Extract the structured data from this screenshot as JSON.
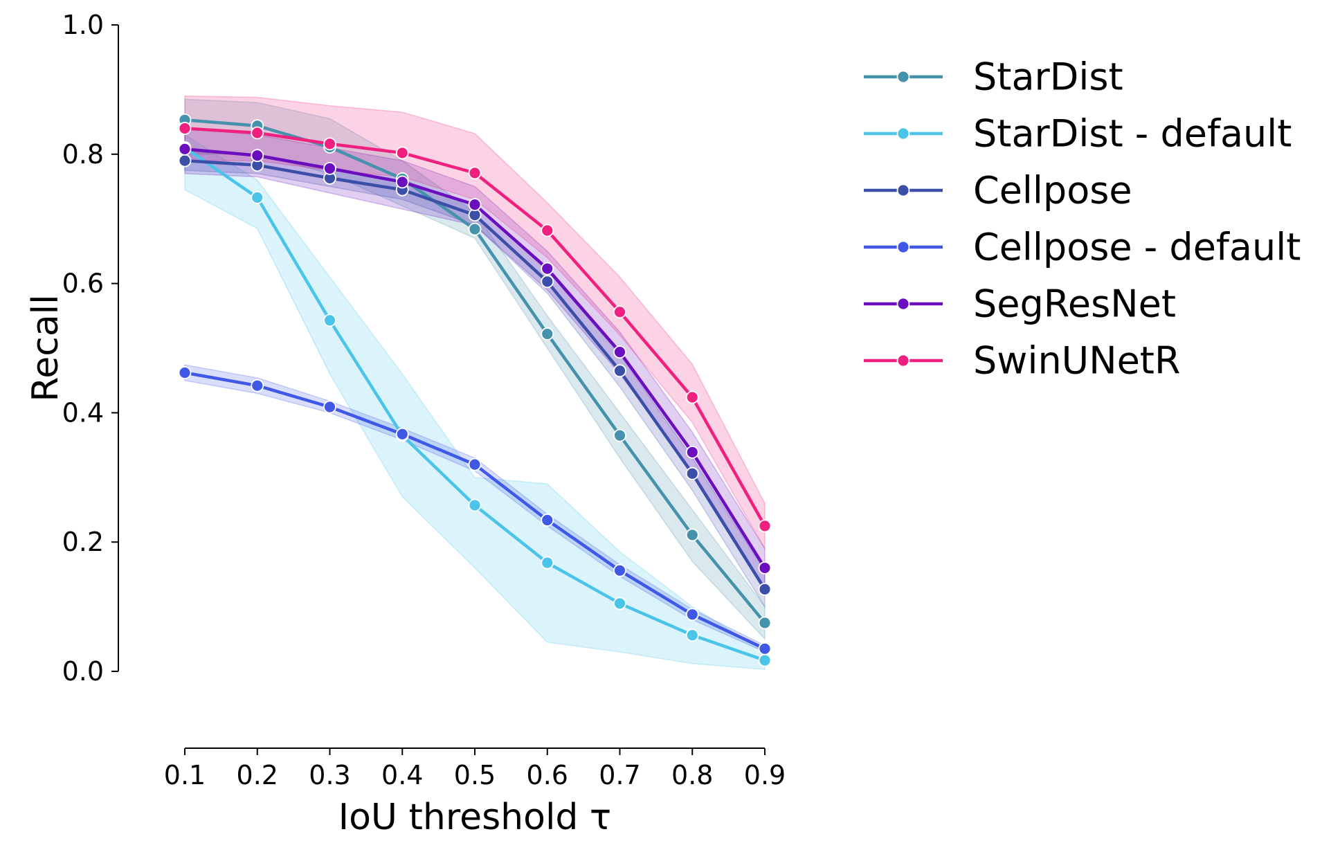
{
  "chart_data": {
    "type": "line",
    "title": "",
    "xlabel": "IoU threshold τ",
    "ylabel": "Recall",
    "x": [
      0.1,
      0.2,
      0.3,
      0.4,
      0.5,
      0.6,
      0.7,
      0.8,
      0.9
    ],
    "x_tick_labels": [
      "0.1",
      "0.2",
      "0.3",
      "0.4",
      "0.5",
      "0.6",
      "0.7",
      "0.8",
      "0.9"
    ],
    "y_tick_labels": [
      "0.0",
      "0.2",
      "0.4",
      "0.6",
      "0.8",
      "1.0"
    ],
    "xlim": [
      0.1,
      0.9
    ],
    "ylim": [
      0.0,
      1.0
    ],
    "grid": false,
    "legend_position": "outside-right",
    "series": [
      {
        "name": "StarDist",
        "color": "#4691ab",
        "values": [
          0.853,
          0.844,
          0.811,
          0.762,
          0.684,
          0.522,
          0.365,
          0.211,
          0.075
        ],
        "lower": [
          0.8,
          0.8,
          0.77,
          0.72,
          0.67,
          0.5,
          0.33,
          0.17,
          0.05
        ],
        "upper": [
          0.885,
          0.88,
          0.855,
          0.79,
          0.71,
          0.55,
          0.4,
          0.25,
          0.1
        ]
      },
      {
        "name": "StarDist - default",
        "color": "#4bc4ea",
        "values": [
          0.81,
          0.733,
          0.543,
          0.365,
          0.257,
          0.168,
          0.105,
          0.056,
          0.017
        ],
        "lower": [
          0.745,
          0.685,
          0.46,
          0.27,
          0.16,
          0.045,
          0.03,
          0.012,
          0.003
        ],
        "upper": [
          0.83,
          0.76,
          0.61,
          0.46,
          0.3,
          0.29,
          0.185,
          0.1,
          0.03
        ]
      },
      {
        "name": "Cellpose",
        "color": "#3c4fa8",
        "values": [
          0.79,
          0.783,
          0.763,
          0.745,
          0.706,
          0.603,
          0.465,
          0.306,
          0.127
        ],
        "lower": [
          0.775,
          0.77,
          0.75,
          0.73,
          0.69,
          0.585,
          0.44,
          0.28,
          0.1
        ],
        "upper": [
          0.805,
          0.797,
          0.777,
          0.76,
          0.722,
          0.62,
          0.49,
          0.33,
          0.155
        ]
      },
      {
        "name": "Cellpose - default",
        "color": "#4058e6",
        "values": [
          0.462,
          0.442,
          0.409,
          0.367,
          0.32,
          0.234,
          0.156,
          0.088,
          0.035
        ],
        "lower": [
          0.45,
          0.43,
          0.4,
          0.358,
          0.31,
          0.225,
          0.147,
          0.08,
          0.03
        ],
        "upper": [
          0.474,
          0.454,
          0.418,
          0.376,
          0.33,
          0.243,
          0.165,
          0.096,
          0.04
        ]
      },
      {
        "name": "SegResNet",
        "color": "#6b0ebe",
        "values": [
          0.808,
          0.798,
          0.778,
          0.757,
          0.722,
          0.623,
          0.494,
          0.339,
          0.16
        ],
        "lower": [
          0.77,
          0.765,
          0.74,
          0.715,
          0.69,
          0.59,
          0.46,
          0.31,
          0.13
        ],
        "upper": [
          0.84,
          0.83,
          0.81,
          0.79,
          0.75,
          0.65,
          0.525,
          0.37,
          0.19
        ]
      },
      {
        "name": "SwinUNetR",
        "color": "#f0217e",
        "values": [
          0.84,
          0.833,
          0.816,
          0.802,
          0.771,
          0.682,
          0.556,
          0.424,
          0.225
        ],
        "lower": [
          0.79,
          0.79,
          0.775,
          0.765,
          0.73,
          0.64,
          0.52,
          0.385,
          0.19
        ],
        "upper": [
          0.89,
          0.888,
          0.875,
          0.865,
          0.832,
          0.725,
          0.61,
          0.475,
          0.26
        ]
      }
    ]
  }
}
